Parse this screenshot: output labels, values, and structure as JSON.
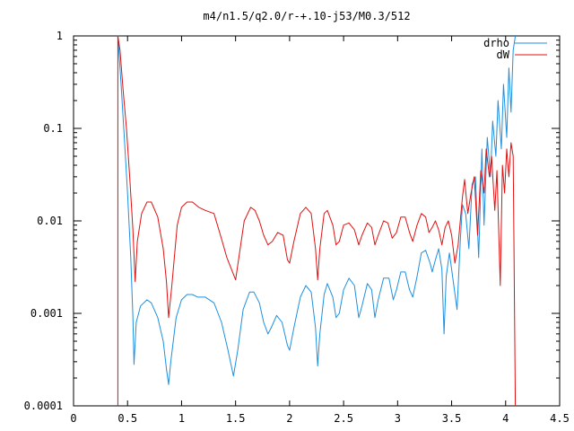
{
  "chart_data": {
    "type": "line",
    "title": "m4/n1.5/q2.0/r-+.10-j53/M0.3/512",
    "xlabel": "",
    "ylabel": "",
    "xlim": [
      0,
      4.5
    ],
    "ylim": [
      0.0001,
      1
    ],
    "y_scale": "log",
    "grid": false,
    "legend_position": "top-right",
    "x_ticks": [
      0,
      0.5,
      1,
      1.5,
      2,
      2.5,
      3,
      3.5,
      4,
      4.5
    ],
    "x_tick_labels": [
      "0",
      "0.5",
      "1",
      "1.5",
      "2",
      "2.5",
      "3",
      "3.5",
      "4",
      "4.5"
    ],
    "y_ticks": [
      0.0001,
      0.001,
      0.01,
      0.1,
      1
    ],
    "y_tick_labels": [
      "0.0001",
      "0.001",
      "0.01",
      "0.1",
      "1"
    ],
    "series": [
      {
        "name": "drho",
        "color": "#1e90e0",
        "points": [
          [
            0.41,
            1.0
          ],
          [
            0.44,
            0.3
          ],
          [
            0.47,
            0.08
          ],
          [
            0.5,
            0.02
          ],
          [
            0.53,
            0.004
          ],
          [
            0.55,
            0.0009
          ],
          [
            0.56,
            0.00028
          ],
          [
            0.58,
            0.0008
          ],
          [
            0.62,
            0.0012
          ],
          [
            0.68,
            0.0014
          ],
          [
            0.72,
            0.0013
          ],
          [
            0.78,
            0.0009
          ],
          [
            0.83,
            0.0005
          ],
          [
            0.86,
            0.00025
          ],
          [
            0.88,
            0.00017
          ],
          [
            0.9,
            0.0003
          ],
          [
            0.95,
            0.0009
          ],
          [
            1.0,
            0.0014
          ],
          [
            1.05,
            0.0016
          ],
          [
            1.1,
            0.0016
          ],
          [
            1.15,
            0.0015
          ],
          [
            1.22,
            0.0015
          ],
          [
            1.3,
            0.0013
          ],
          [
            1.37,
            0.0008
          ],
          [
            1.43,
            0.0004
          ],
          [
            1.48,
            0.00021
          ],
          [
            1.52,
            0.0004
          ],
          [
            1.57,
            0.0011
          ],
          [
            1.63,
            0.0017
          ],
          [
            1.67,
            0.0017
          ],
          [
            1.72,
            0.0013
          ],
          [
            1.76,
            0.0008
          ],
          [
            1.8,
            0.0006
          ],
          [
            1.83,
            0.0007
          ],
          [
            1.88,
            0.00095
          ],
          [
            1.93,
            0.0008
          ],
          [
            1.98,
            0.00045
          ],
          [
            2.0,
            0.0004
          ],
          [
            2.04,
            0.0007
          ],
          [
            2.1,
            0.0015
          ],
          [
            2.15,
            0.002
          ],
          [
            2.2,
            0.0017
          ],
          [
            2.24,
            0.0007
          ],
          [
            2.26,
            0.00027
          ],
          [
            2.28,
            0.0006
          ],
          [
            2.32,
            0.0016
          ],
          [
            2.35,
            0.0021
          ],
          [
            2.4,
            0.0015
          ],
          [
            2.43,
            0.0009
          ],
          [
            2.46,
            0.001
          ],
          [
            2.5,
            0.0018
          ],
          [
            2.55,
            0.0024
          ],
          [
            2.6,
            0.002
          ],
          [
            2.64,
            0.0009
          ],
          [
            2.67,
            0.0012
          ],
          [
            2.72,
            0.0021
          ],
          [
            2.76,
            0.0018
          ],
          [
            2.79,
            0.0009
          ],
          [
            2.82,
            0.0014
          ],
          [
            2.87,
            0.0024
          ],
          [
            2.92,
            0.0024
          ],
          [
            2.96,
            0.0014
          ],
          [
            2.99,
            0.0018
          ],
          [
            3.03,
            0.0028
          ],
          [
            3.07,
            0.0028
          ],
          [
            3.11,
            0.0018
          ],
          [
            3.14,
            0.0015
          ],
          [
            3.18,
            0.0025
          ],
          [
            3.22,
            0.0045
          ],
          [
            3.26,
            0.0048
          ],
          [
            3.3,
            0.0035
          ],
          [
            3.32,
            0.0028
          ],
          [
            3.35,
            0.0038
          ],
          [
            3.38,
            0.005
          ],
          [
            3.41,
            0.003
          ],
          [
            3.43,
            0.0006
          ],
          [
            3.45,
            0.0025
          ],
          [
            3.48,
            0.0045
          ],
          [
            3.52,
            0.002
          ],
          [
            3.55,
            0.0011
          ],
          [
            3.58,
            0.006
          ],
          [
            3.6,
            0.015
          ],
          [
            3.63,
            0.012
          ],
          [
            3.66,
            0.005
          ],
          [
            3.69,
            0.025
          ],
          [
            3.72,
            0.03
          ],
          [
            3.75,
            0.004
          ],
          [
            3.78,
            0.06
          ],
          [
            3.8,
            0.009
          ],
          [
            3.83,
            0.08
          ],
          [
            3.86,
            0.03
          ],
          [
            3.88,
            0.12
          ],
          [
            3.91,
            0.05
          ],
          [
            3.93,
            0.2
          ],
          [
            3.96,
            0.06
          ],
          [
            3.98,
            0.3
          ],
          [
            4.01,
            0.08
          ],
          [
            4.03,
            0.45
          ],
          [
            4.05,
            0.15
          ],
          [
            4.07,
            0.7
          ],
          [
            4.09,
            1.0
          ]
        ]
      },
      {
        "name": "dW",
        "color": "#e01010",
        "points": [
          [
            0.41,
            0.0001
          ],
          [
            0.41,
            1.0
          ],
          [
            0.43,
            0.7
          ],
          [
            0.46,
            0.25
          ],
          [
            0.49,
            0.1
          ],
          [
            0.52,
            0.03
          ],
          [
            0.55,
            0.008
          ],
          [
            0.57,
            0.0022
          ],
          [
            0.59,
            0.006
          ],
          [
            0.63,
            0.012
          ],
          [
            0.68,
            0.016
          ],
          [
            0.72,
            0.016
          ],
          [
            0.78,
            0.011
          ],
          [
            0.83,
            0.005
          ],
          [
            0.86,
            0.0022
          ],
          [
            0.88,
            0.0009
          ],
          [
            0.91,
            0.002
          ],
          [
            0.96,
            0.009
          ],
          [
            1.0,
            0.014
          ],
          [
            1.05,
            0.016
          ],
          [
            1.1,
            0.016
          ],
          [
            1.16,
            0.014
          ],
          [
            1.22,
            0.013
          ],
          [
            1.3,
            0.012
          ],
          [
            1.36,
            0.007
          ],
          [
            1.42,
            0.004
          ],
          [
            1.5,
            0.0023
          ],
          [
            1.53,
            0.004
          ],
          [
            1.58,
            0.01
          ],
          [
            1.64,
            0.014
          ],
          [
            1.68,
            0.013
          ],
          [
            1.72,
            0.01
          ],
          [
            1.76,
            0.007
          ],
          [
            1.8,
            0.0055
          ],
          [
            1.84,
            0.006
          ],
          [
            1.89,
            0.0075
          ],
          [
            1.94,
            0.007
          ],
          [
            1.98,
            0.0038
          ],
          [
            2.0,
            0.0035
          ],
          [
            2.04,
            0.006
          ],
          [
            2.1,
            0.012
          ],
          [
            2.15,
            0.014
          ],
          [
            2.2,
            0.012
          ],
          [
            2.24,
            0.005
          ],
          [
            2.26,
            0.0023
          ],
          [
            2.28,
            0.005
          ],
          [
            2.32,
            0.012
          ],
          [
            2.35,
            0.013
          ],
          [
            2.4,
            0.009
          ],
          [
            2.43,
            0.0055
          ],
          [
            2.46,
            0.006
          ],
          [
            2.5,
            0.009
          ],
          [
            2.55,
            0.0095
          ],
          [
            2.6,
            0.008
          ],
          [
            2.64,
            0.0055
          ],
          [
            2.67,
            0.007
          ],
          [
            2.72,
            0.0095
          ],
          [
            2.76,
            0.0085
          ],
          [
            2.79,
            0.0055
          ],
          [
            2.82,
            0.007
          ],
          [
            2.87,
            0.01
          ],
          [
            2.91,
            0.0095
          ],
          [
            2.95,
            0.0065
          ],
          [
            2.99,
            0.0075
          ],
          [
            3.03,
            0.011
          ],
          [
            3.07,
            0.011
          ],
          [
            3.11,
            0.0075
          ],
          [
            3.14,
            0.006
          ],
          [
            3.18,
            0.009
          ],
          [
            3.22,
            0.012
          ],
          [
            3.26,
            0.011
          ],
          [
            3.29,
            0.0075
          ],
          [
            3.32,
            0.0085
          ],
          [
            3.35,
            0.01
          ],
          [
            3.38,
            0.008
          ],
          [
            3.41,
            0.0055
          ],
          [
            3.44,
            0.0085
          ],
          [
            3.47,
            0.01
          ],
          [
            3.5,
            0.007
          ],
          [
            3.53,
            0.0035
          ],
          [
            3.56,
            0.0055
          ],
          [
            3.6,
            0.018
          ],
          [
            3.62,
            0.028
          ],
          [
            3.65,
            0.012
          ],
          [
            3.68,
            0.02
          ],
          [
            3.71,
            0.03
          ],
          [
            3.74,
            0.007
          ],
          [
            3.77,
            0.035
          ],
          [
            3.8,
            0.02
          ],
          [
            3.82,
            0.06
          ],
          [
            3.85,
            0.03
          ],
          [
            3.87,
            0.05
          ],
          [
            3.9,
            0.013
          ],
          [
            3.92,
            0.035
          ],
          [
            3.95,
            0.002
          ],
          [
            3.97,
            0.04
          ],
          [
            3.99,
            0.02
          ],
          [
            4.01,
            0.06
          ],
          [
            4.03,
            0.03
          ],
          [
            4.05,
            0.07
          ],
          [
            4.07,
            0.05
          ],
          [
            4.09,
            0.0001
          ]
        ]
      }
    ]
  }
}
